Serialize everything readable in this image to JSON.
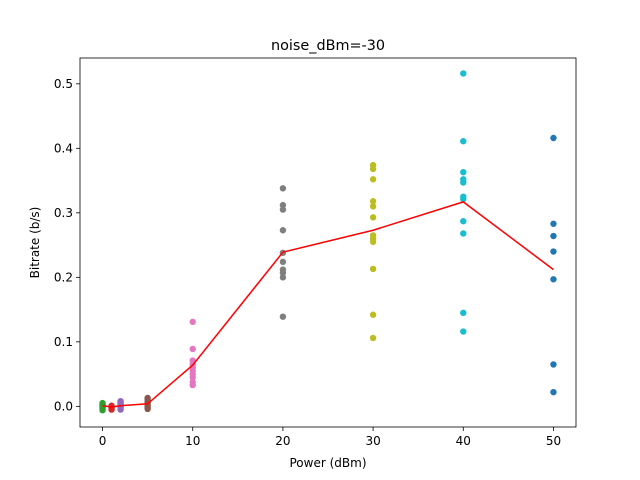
{
  "chart_data": {
    "type": "scatter",
    "title": "noise_dBm=-30",
    "xlabel": "Power (dBm)",
    "ylabel": "Bitrate (b/s)",
    "xlim": [
      -2.5,
      52.5
    ],
    "ylim": [
      -0.032,
      0.54
    ],
    "xticks": [
      0,
      10,
      20,
      30,
      40,
      50
    ],
    "yticks": [
      0.0,
      0.1,
      0.2,
      0.3,
      0.4,
      0.5
    ],
    "grid": false,
    "legend": "none",
    "series": [
      {
        "x": 0,
        "color": "#2ca02c",
        "values": [
          0.005,
          0.003,
          0.001,
          0.0,
          -0.002,
          -0.004,
          -0.006,
          0.002
        ]
      },
      {
        "x": 1,
        "color": "#d62728",
        "values": [
          0.001,
          0.0,
          -0.001,
          -0.003,
          -0.005
        ]
      },
      {
        "x": 2,
        "color": "#9467bd",
        "values": [
          0.008,
          0.006,
          0.004,
          0.002,
          0.0,
          -0.002,
          -0.005
        ]
      },
      {
        "x": 5,
        "color": "#8c564b",
        "values": [
          0.013,
          0.01,
          0.007,
          0.004,
          0.001,
          -0.002,
          -0.004
        ]
      },
      {
        "x": 10,
        "color": "#e377c2",
        "values": [
          0.131,
          0.089,
          0.071,
          0.065,
          0.06,
          0.055,
          0.05,
          0.045,
          0.038,
          0.033
        ]
      },
      {
        "x": 20,
        "color": "#7f7f7f",
        "values": [
          0.338,
          0.312,
          0.305,
          0.273,
          0.238,
          0.224,
          0.212,
          0.207,
          0.2,
          0.139
        ]
      },
      {
        "x": 30,
        "color": "#bcbd22",
        "values": [
          0.374,
          0.368,
          0.352,
          0.318,
          0.31,
          0.293,
          0.265,
          0.26,
          0.255,
          0.213,
          0.142,
          0.106
        ]
      },
      {
        "x": 40,
        "color": "#17becf",
        "values": [
          0.516,
          0.411,
          0.363,
          0.352,
          0.347,
          0.325,
          0.321,
          0.287,
          0.268,
          0.145,
          0.116
        ]
      },
      {
        "x": 50,
        "color": "#1f77b4",
        "values": [
          0.416,
          0.283,
          0.264,
          0.24,
          0.197,
          0.065,
          0.022
        ]
      }
    ],
    "mean_line": {
      "color": "#ff0000",
      "x": [
        0,
        1,
        2,
        5,
        10,
        20,
        30,
        40,
        50
      ],
      "y": [
        0.001,
        -0.001,
        0.001,
        0.004,
        0.064,
        0.239,
        0.273,
        0.317,
        0.212
      ]
    }
  }
}
